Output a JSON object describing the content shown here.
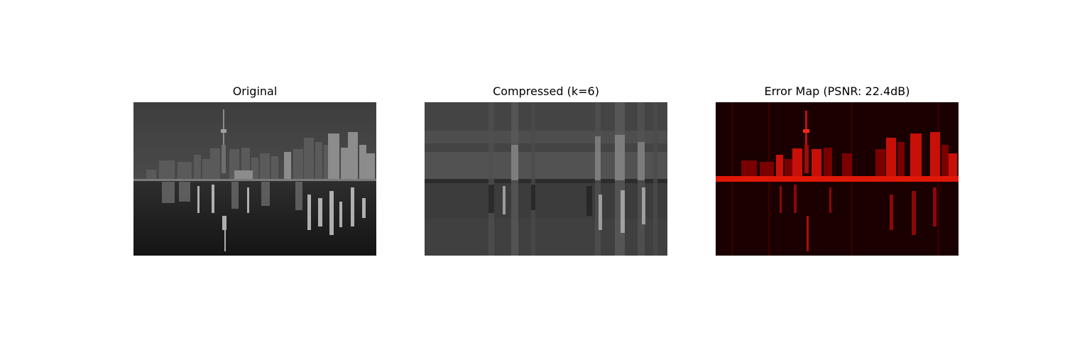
{
  "figure": {
    "panels": [
      {
        "title": "Original",
        "image_kind": "grayscale-city-skyline-night-reflection"
      },
      {
        "title": "Compressed (k=6)",
        "image_kind": "low-rank-svd-reconstruction-blurred-skyline"
      },
      {
        "title": "Error Map (PSNR: 22.4dB)",
        "image_kind": "red-hot-error-heatmap-skyline"
      }
    ],
    "colors": {
      "background": "#ffffff",
      "error_map_base": "#1a0000",
      "error_map_hot": "#ff1a00"
    }
  }
}
